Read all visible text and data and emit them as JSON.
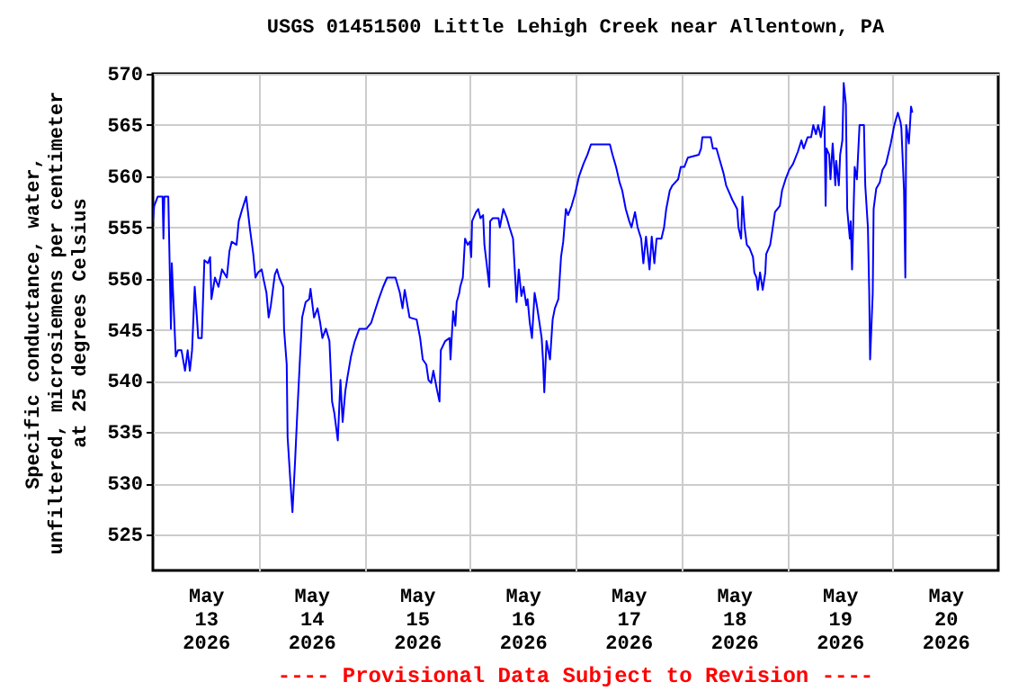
{
  "chart_data": {
    "type": "line",
    "title": "USGS 01451500 Little Lehigh Creek near Allentown, PA",
    "ylabel": "Specific conductance, water,\nunfiltered, microsiemens per centimeter\nat 25 degrees Celsius",
    "annotations": [
      "---- Provisional Data Subject to Revision ----"
    ],
    "xlim": [
      "2026-05-13T00:00",
      "2026-05-21T00:00"
    ],
    "xticks": [
      {
        "value": "2026-05-13T12:00",
        "label": "May\n13\n2026"
      },
      {
        "value": "2026-05-14T00:00",
        "label": null
      },
      {
        "value": "2026-05-14T12:00",
        "label": "May\n14\n2026"
      },
      {
        "value": "2026-05-15T00:00",
        "label": null
      },
      {
        "value": "2026-05-15T12:00",
        "label": "May\n15\n2026"
      },
      {
        "value": "2026-05-16T00:00",
        "label": null
      },
      {
        "value": "2026-05-16T12:00",
        "label": "May\n16\n2026"
      },
      {
        "value": "2026-05-17T00:00",
        "label": null
      },
      {
        "value": "2026-05-17T12:00",
        "label": "May\n17\n2026"
      },
      {
        "value": "2026-05-18T00:00",
        "label": null
      },
      {
        "value": "2026-05-18T12:00",
        "label": "May\n18\n2026"
      },
      {
        "value": "2026-05-19T00:00",
        "label": null
      },
      {
        "value": "2026-05-19T12:00",
        "label": "May\n19\n2026"
      },
      {
        "value": "2026-05-20T00:00",
        "label": null
      },
      {
        "value": "2026-05-20T12:00",
        "label": "May\n20\n2026"
      }
    ],
    "ylim": [
      521.5,
      570
    ],
    "yticks": [
      525,
      530,
      535,
      540,
      545,
      550,
      555,
      560,
      565,
      570
    ],
    "grid": true,
    "series": [
      {
        "color": "#0000ff",
        "x": [
          "2026-05-13T00:00",
          "2026-05-13T00:18",
          "2026-05-13T01:06",
          "2026-05-13T02:12",
          "2026-05-13T02:24",
          "2026-05-13T02:36",
          "2026-05-13T03:30",
          "2026-05-13T04:06",
          "2026-05-13T04:18",
          "2026-05-13T05:12",
          "2026-05-13T05:42",
          "2026-05-13T06:30",
          "2026-05-13T07:18",
          "2026-05-13T07:54",
          "2026-05-13T08:24",
          "2026-05-13T08:54",
          "2026-05-13T09:30",
          "2026-05-13T10:00",
          "2026-05-13T10:18",
          "2026-05-13T11:06",
          "2026-05-13T11:42",
          "2026-05-13T12:30",
          "2026-05-13T13:00",
          "2026-05-13T13:18",
          "2026-05-13T14:06",
          "2026-05-13T14:54",
          "2026-05-13T15:42",
          "2026-05-13T16:48",
          "2026-05-13T17:24",
          "2026-05-13T17:54",
          "2026-05-13T19:00",
          "2026-05-13T19:30",
          "2026-05-13T20:18",
          "2026-05-13T21:12",
          "2026-05-13T22:00",
          "2026-05-13T22:48",
          "2026-05-13T23:18",
          "2026-05-13T23:54",
          "2026-05-14T00:42",
          "2026-05-14T01:12",
          "2026-05-14T01:48",
          "2026-05-14T02:18",
          "2026-05-14T02:48",
          "2026-05-14T03:42",
          "2026-05-14T04:12",
          "2026-05-14T04:42",
          "2026-05-14T05:36",
          "2026-05-14T05:48",
          "2026-05-14T06:24",
          "2026-05-14T06:36",
          "2026-05-14T07:12",
          "2026-05-14T07:42",
          "2026-05-14T08:18",
          "2026-05-14T08:48",
          "2026-05-14T09:24",
          "2026-05-14T09:54",
          "2026-05-14T10:42",
          "2026-05-14T11:30",
          "2026-05-14T11:48",
          "2026-05-14T12:36",
          "2026-05-14T13:24",
          "2026-05-14T14:00",
          "2026-05-14T14:30",
          "2026-05-14T15:18",
          "2026-05-14T16:06",
          "2026-05-14T16:42",
          "2026-05-14T17:12",
          "2026-05-14T18:00",
          "2026-05-14T18:36",
          "2026-05-14T19:06",
          "2026-05-14T19:42",
          "2026-05-14T20:12",
          "2026-05-14T21:00",
          "2026-05-14T21:48",
          "2026-05-14T22:54",
          "2026-05-14T23:42",
          "2026-05-15T00:30",
          "2026-05-15T01:36",
          "2026-05-15T02:24",
          "2026-05-15T03:18",
          "2026-05-15T04:18",
          "2026-05-15T05:12",
          "2026-05-15T07:06",
          "2026-05-15T08:06",
          "2026-05-15T08:42",
          "2026-05-15T09:12",
          "2026-05-15T10:18",
          "2026-05-15T11:54",
          "2026-05-15T12:42",
          "2026-05-15T13:18",
          "2026-05-15T14:06",
          "2026-05-15T14:36",
          "2026-05-15T15:12",
          "2026-05-15T15:42",
          "2026-05-15T16:30",
          "2026-05-15T17:06",
          "2026-05-15T17:24",
          "2026-05-15T18:24",
          "2026-05-15T19:24",
          "2026-05-15T19:36",
          "2026-05-15T20:12",
          "2026-05-15T20:42",
          "2026-05-15T21:00",
          "2026-05-15T21:36",
          "2026-05-15T21:48",
          "2026-05-15T22:24",
          "2026-05-15T22:54",
          "2026-05-15T23:30",
          "2026-05-16T00:00",
          "2026-05-16T00:18",
          "2026-05-16T00:30",
          "2026-05-16T01:24",
          "2026-05-16T01:54",
          "2026-05-16T02:24",
          "2026-05-16T03:00",
          "2026-05-16T03:18",
          "2026-05-16T03:48",
          "2026-05-16T04:24",
          "2026-05-16T04:36",
          "2026-05-16T05:12",
          "2026-05-16T06:30",
          "2026-05-16T06:48",
          "2026-05-16T07:36",
          "2026-05-16T08:24",
          "2026-05-16T09:00",
          "2026-05-16T09:48",
          "2026-05-16T10:18",
          "2026-05-16T10:36",
          "2026-05-16T11:06",
          "2026-05-16T11:42",
          "2026-05-16T12:12",
          "2026-05-16T12:48",
          "2026-05-16T13:06",
          "2026-05-16T13:36",
          "2026-05-16T14:06",
          "2026-05-16T14:42",
          "2026-05-16T15:12",
          "2026-05-16T15:48",
          "2026-05-16T16:18",
          "2026-05-16T16:36",
          "2026-05-16T16:54",
          "2026-05-16T17:24",
          "2026-05-16T18:12",
          "2026-05-16T18:48",
          "2026-05-16T19:18",
          "2026-05-16T20:06",
          "2026-05-16T20:42",
          "2026-05-16T21:12",
          "2026-05-16T21:48",
          "2026-05-16T22:18",
          "2026-05-16T23:06",
          "2026-05-16T23:54",
          "2026-05-17T00:48",
          "2026-05-17T01:48",
          "2026-05-17T02:42",
          "2026-05-17T03:30",
          "2026-05-17T07:48",
          "2026-05-17T08:24",
          "2026-05-17T09:12",
          "2026-05-17T10:00",
          "2026-05-17T10:36",
          "2026-05-17T11:24",
          "2026-05-17T12:12",
          "2026-05-17T12:42",
          "2026-05-17T13:30",
          "2026-05-17T14:06",
          "2026-05-17T14:54",
          "2026-05-17T15:24",
          "2026-05-17T16:00",
          "2026-05-17T16:48",
          "2026-05-17T17:18",
          "2026-05-17T17:54",
          "2026-05-17T18:24",
          "2026-05-17T19:30",
          "2026-05-17T20:06",
          "2026-05-17T20:36",
          "2026-05-17T21:24",
          "2026-05-17T22:00",
          "2026-05-17T23:18",
          "2026-05-17T23:54",
          "2026-05-18T00:42",
          "2026-05-18T01:30",
          "2026-05-18T04:00",
          "2026-05-18T04:30",
          "2026-05-18T04:48",
          "2026-05-18T06:42",
          "2026-05-18T07:12",
          "2026-05-18T08:00",
          "2026-05-18T08:48",
          "2026-05-18T09:36",
          "2026-05-18T10:12",
          "2026-05-18T11:00",
          "2026-05-18T11:36",
          "2026-05-18T12:42",
          "2026-05-18T13:00",
          "2026-05-18T13:36",
          "2026-05-18T13:54",
          "2026-05-18T14:24",
          "2026-05-18T14:54",
          "2026-05-18T15:30",
          "2026-05-18T16:18",
          "2026-05-18T16:36",
          "2026-05-18T17:06",
          "2026-05-18T17:24",
          "2026-05-18T17:54",
          "2026-05-18T18:30",
          "2026-05-18T19:06",
          "2026-05-18T19:18",
          "2026-05-18T20:12",
          "2026-05-18T20:42",
          "2026-05-18T21:18",
          "2026-05-18T22:24",
          "2026-05-18T22:54",
          "2026-05-18T23:42",
          "2026-05-19T00:30",
          "2026-05-19T01:24",
          "2026-05-19T02:30",
          "2026-05-19T03:18",
          "2026-05-19T03:48",
          "2026-05-19T04:42",
          "2026-05-19T05:30",
          "2026-05-19T06:00",
          "2026-05-19T06:36",
          "2026-05-19T07:06",
          "2026-05-19T07:42",
          "2026-05-19T08:12",
          "2026-05-19T08:30",
          "2026-05-19T08:48",
          "2026-05-19T09:00",
          "2026-05-19T09:36",
          "2026-05-19T09:54",
          "2026-05-19T10:24",
          "2026-05-19T11:00",
          "2026-05-19T11:12",
          "2026-05-19T11:48",
          "2026-05-19T12:06",
          "2026-05-19T12:36",
          "2026-05-19T12:54",
          "2026-05-19T13:24",
          "2026-05-19T13:42",
          "2026-05-19T14:18",
          "2026-05-19T14:30",
          "2026-05-19T14:48",
          "2026-05-19T15:24",
          "2026-05-19T15:54",
          "2026-05-19T16:30",
          "2026-05-19T17:30",
          "2026-05-19T17:48",
          "2026-05-19T18:24",
          "2026-05-19T18:42",
          "2026-05-19T18:54",
          "2026-05-19T19:30",
          "2026-05-19T19:42",
          "2026-05-19T20:18",
          "2026-05-19T21:06",
          "2026-05-19T21:42",
          "2026-05-19T22:30",
          "2026-05-19T23:00",
          "2026-05-19T23:36",
          "2026-05-20T00:24",
          "2026-05-20T01:12",
          "2026-05-20T01:48",
          "2026-05-20T02:00",
          "2026-05-20T02:36",
          "2026-05-20T02:54",
          "2026-05-20T03:06",
          "2026-05-20T03:42",
          "2026-05-20T04:00",
          "2026-05-20T04:12",
          "2026-05-20T04:30"
        ],
        "values": [
          555.6,
          557.1,
          558,
          558,
          553.9,
          558,
          558,
          545.1,
          551.5,
          542.4,
          543,
          543,
          541,
          543,
          541,
          543,
          549.2,
          546.2,
          544.2,
          544.2,
          551.8,
          551.5,
          552.1,
          548,
          550.1,
          549.2,
          550.9,
          550.1,
          552.7,
          553.6,
          553.3,
          555.6,
          556.8,
          558,
          555,
          552.4,
          550.1,
          550.6,
          550.9,
          549.8,
          548.6,
          546.2,
          547.4,
          550.4,
          550.9,
          550.1,
          549.2,
          545,
          541.6,
          534.5,
          530.4,
          527.2,
          532.2,
          536.9,
          542.1,
          546.2,
          547.7,
          548,
          549,
          546.2,
          547.1,
          545.7,
          544.2,
          545.1,
          543.9,
          538,
          536.9,
          534.2,
          540.1,
          536,
          539,
          540.4,
          542.4,
          543.8,
          545.1,
          545.1,
          545.1,
          545.7,
          546.8,
          548,
          549.2,
          550.1,
          550.1,
          548.6,
          547.1,
          548.9,
          546.2,
          546,
          544.2,
          542.1,
          541.6,
          540.1,
          539.8,
          541,
          539.2,
          538,
          543,
          543.9,
          544.2,
          542.1,
          546.8,
          545.4,
          547.7,
          548.6,
          549.2,
          550.1,
          553.9,
          553.3,
          553.6,
          552.1,
          555.6,
          556.5,
          556.8,
          555.9,
          556.2,
          553.3,
          551.5,
          549.2,
          555.6,
          555.9,
          555.9,
          555,
          556.8,
          555.9,
          555,
          553.9,
          550.1,
          547.7,
          550.9,
          548.3,
          549.2,
          547.4,
          548,
          545.7,
          544.2,
          548.6,
          547.4,
          545.7,
          544.2,
          542.1,
          538.9,
          543.9,
          542.1,
          546,
          547.1,
          548,
          552.1,
          553.6,
          556.8,
          556.2,
          557.1,
          558.3,
          560,
          561.2,
          562.1,
          563.1,
          563.1,
          562.1,
          560.9,
          559.4,
          558.6,
          556.8,
          555.6,
          555,
          556.5,
          555,
          553.9,
          551.5,
          554.1,
          550.9,
          554.1,
          551.5,
          553.9,
          553.9,
          555,
          556.8,
          558.6,
          559.1,
          559.7,
          560.9,
          560.9,
          561.8,
          562.1,
          562.7,
          563.8,
          563.8,
          562.7,
          562.7,
          561.5,
          560.3,
          559.1,
          558.3,
          557.7,
          556.8,
          555,
          553.9,
          558,
          555,
          553.3,
          553,
          552.1,
          550.6,
          550.1,
          548.9,
          550.6,
          548.9,
          550.6,
          552.4,
          553.3,
          554.7,
          556.5,
          557.1,
          558.6,
          559.7,
          560.6,
          561.2,
          562.4,
          563.5,
          562.7,
          563.8,
          563.8,
          565,
          564.1,
          565,
          563.8,
          565.3,
          566.8,
          557.1,
          562.7,
          562.1,
          559.7,
          563.2,
          559.1,
          561.5,
          559.1,
          562.1,
          563.5,
          569.1,
          567,
          556.8,
          553.9,
          555.6,
          550.9,
          560.9,
          559.7,
          565,
          565,
          559.1,
          555,
          548.6,
          542.1,
          548.6,
          556.8,
          558.8,
          559.4,
          560.6,
          561.2,
          562.1,
          563.2,
          565,
          566.2,
          565.3,
          564.7,
          558.6,
          550.1,
          565,
          563.2,
          565.3,
          566.8,
          566.2
        ]
      }
    ]
  }
}
